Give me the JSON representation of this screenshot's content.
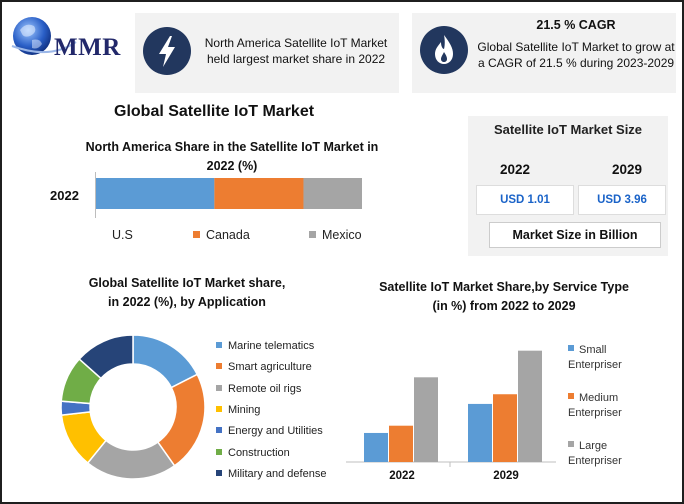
{
  "brand": {
    "logo_text": "MMR"
  },
  "header": {
    "card1_text": "North America Satellite IoT Market held largest market share in 2022",
    "card2_title": "21.5 % CAGR",
    "card2_text": "Global Satellite IoT Market to grow at a CAGR of 21.5 % during 2023-2029"
  },
  "main_title": "Global Satellite IoT Market",
  "market_size": {
    "title": "Satellite IoT Market Size",
    "year1": "2022",
    "year2": "2029",
    "value1": "USD 1.01",
    "value2": "USD 3.96",
    "note": "Market Size in Billion"
  },
  "colors": {
    "blue": "#5b9bd5",
    "orange": "#ed7d31",
    "gray": "#a5a5a5",
    "yellow": "#ffc000",
    "darkblue": "#4472c4",
    "green": "#70ad47",
    "navy": "#264478",
    "icon": "#22375e"
  },
  "icons": {
    "card1": "lightning-icon",
    "card2": "flame-icon",
    "logo": "globe-icon"
  },
  "chart_data": [
    {
      "type": "bar",
      "orientation": "horizontal",
      "stacked": true,
      "title": "North America Share in the Satellite IoT Market  in 2022 (%)",
      "categories": [
        "2022"
      ],
      "series": [
        {
          "name": "U.S",
          "values": [
            44.5
          ],
          "color": "#5b9bd5"
        },
        {
          "name": "Canada",
          "values": [
            33.5
          ],
          "color": "#ed7d31"
        },
        {
          "name": "Mexico",
          "values": [
            22
          ],
          "color": "#a5a5a5"
        }
      ],
      "legend": "bottom"
    },
    {
      "type": "pie",
      "donut": true,
      "title": "Global Satellite IoT Market share, in 2022 (%), by Application",
      "labels": [
        "Marine telematics",
        "Smart agriculture",
        "Remote oil rigs",
        "Mining",
        "Energy and Utilities",
        "Construction",
        "Military and defense"
      ],
      "values": [
        17,
        22,
        20,
        12,
        3,
        10,
        13
      ],
      "colors": [
        "#5b9bd5",
        "#ed7d31",
        "#a5a5a5",
        "#ffc000",
        "#4472c4",
        "#70ad47",
        "#264478"
      ],
      "legend": "right"
    },
    {
      "type": "bar",
      "title": "Satellite IoT Market Share,by Service Type (in %) from 2022 to 2029",
      "categories": [
        "2022",
        "2029"
      ],
      "series": [
        {
          "name": "Small Enterpriser",
          "values": [
            12,
            24
          ],
          "color": "#5b9bd5"
        },
        {
          "name": "Medium Enterpriser",
          "values": [
            15,
            28
          ],
          "color": "#ed7d31"
        },
        {
          "name": "Large Enterpriser",
          "values": [
            35,
            46
          ],
          "color": "#a5a5a5"
        }
      ],
      "ylim": [
        0,
        50
      ],
      "legend": "right"
    }
  ]
}
